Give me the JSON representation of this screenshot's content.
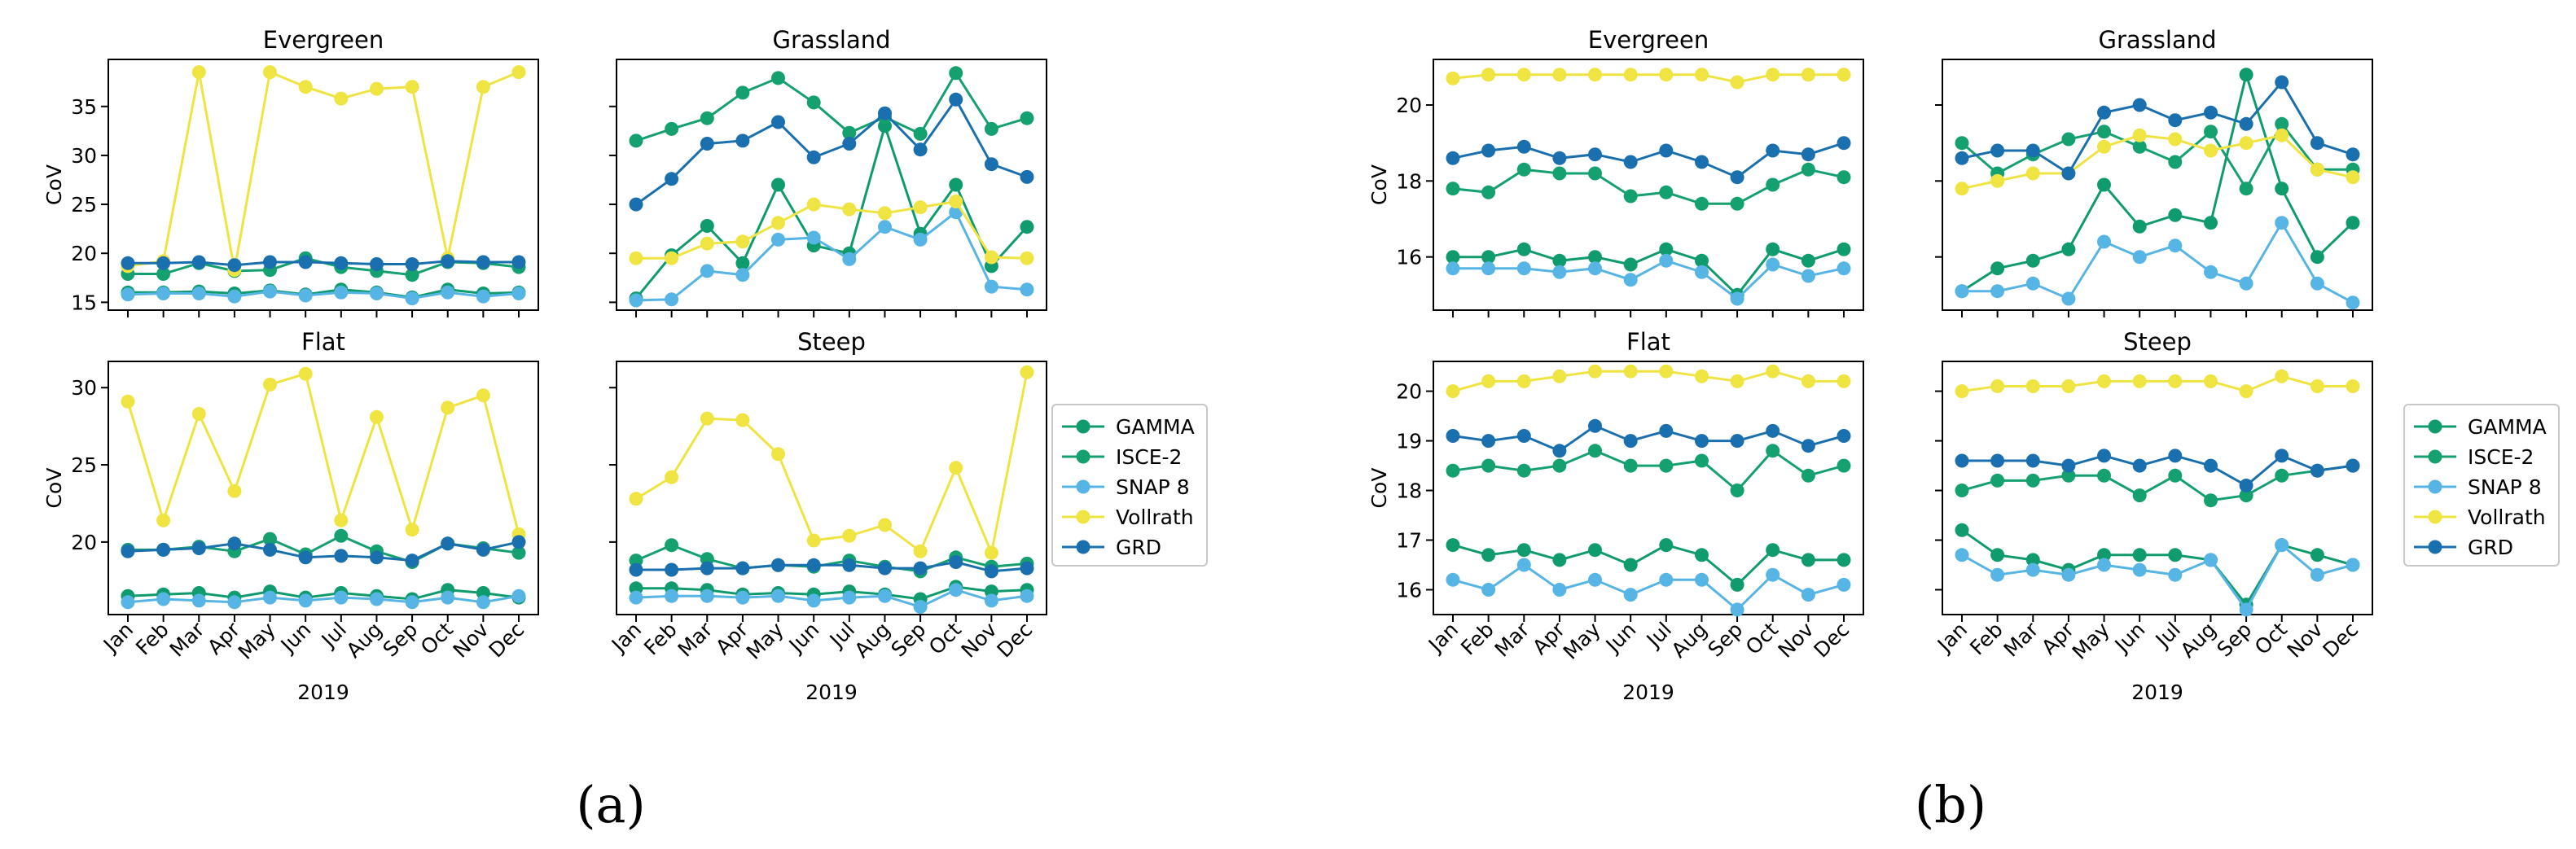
{
  "colors": {
    "GAMMA": "#0f9b6d",
    "ISCE-2": "#15a16f",
    "SNAP 8": "#57b5e6",
    "Vollrath": "#f0e442",
    "GRD": "#1a70ae"
  },
  "months": [
    "Jan",
    "Feb",
    "Mar",
    "Apr",
    "May",
    "Jun",
    "Jul",
    "Aug",
    "Sep",
    "Oct",
    "Nov",
    "Dec"
  ],
  "legend": [
    "GAMMA",
    "ISCE-2",
    "SNAP 8",
    "Vollrath",
    "GRD"
  ],
  "panel_labels": [
    "(a)",
    "(b)"
  ],
  "chart_data": [
    {
      "type": "line",
      "title": "Evergreen",
      "ylabel": "CoV",
      "xlabel": "",
      "ylim": [
        14.2,
        39.8
      ],
      "yticks": [
        15,
        20,
        25,
        30,
        35
      ],
      "series": [
        {
          "name": "GAMMA",
          "values": [
            16.0,
            16.0,
            16.1,
            15.9,
            16.2,
            15.8,
            16.3,
            16.0,
            15.5,
            16.3,
            15.9,
            16.0
          ]
        },
        {
          "name": "ISCE-2",
          "values": [
            17.9,
            17.9,
            19.0,
            18.2,
            18.3,
            19.5,
            18.6,
            18.2,
            17.8,
            19.1,
            19.0,
            18.6
          ]
        },
        {
          "name": "SNAP 8",
          "values": [
            15.8,
            15.9,
            15.9,
            15.6,
            16.1,
            15.7,
            16.0,
            15.9,
            15.4,
            16.0,
            15.6,
            15.9
          ]
        },
        {
          "name": "Vollrath",
          "values": [
            18.7,
            19.2,
            38.5,
            18.3,
            38.5,
            37.0,
            35.8,
            36.8,
            37.0,
            19.5,
            37.0,
            38.5
          ]
        },
        {
          "name": "GRD",
          "values": [
            19.0,
            19.0,
            19.1,
            18.8,
            19.1,
            19.1,
            19.0,
            18.9,
            18.9,
            19.2,
            19.1,
            19.1
          ]
        }
      ]
    },
    {
      "type": "line",
      "title": "Grassland",
      "ylabel": "",
      "xlabel": "",
      "ylim": [
        14.2,
        39.8
      ],
      "yticks": [
        15,
        20,
        25,
        30,
        35
      ],
      "series": [
        {
          "name": "GAMMA",
          "values": [
            15.4,
            19.8,
            22.8,
            19.0,
            27.0,
            20.8,
            20.0,
            33.0,
            22.0,
            27.0,
            18.7,
            22.7
          ]
        },
        {
          "name": "ISCE-2",
          "values": [
            31.5,
            32.7,
            33.8,
            36.4,
            37.9,
            35.4,
            32.3,
            33.9,
            32.2,
            38.4,
            32.7,
            33.8
          ]
        },
        {
          "name": "SNAP 8",
          "values": [
            15.2,
            15.3,
            18.2,
            17.8,
            21.4,
            21.6,
            19.4,
            22.7,
            21.4,
            24.2,
            16.6,
            16.3
          ]
        },
        {
          "name": "Vollrath",
          "values": [
            19.5,
            19.5,
            21.0,
            21.2,
            23.1,
            25.0,
            24.5,
            24.1,
            24.7,
            25.3,
            19.6,
            19.5
          ]
        },
        {
          "name": "GRD",
          "values": [
            25.0,
            27.6,
            31.2,
            31.5,
            33.4,
            29.8,
            31.2,
            34.3,
            30.6,
            35.7,
            29.1,
            27.8
          ]
        }
      ]
    },
    {
      "type": "line",
      "title": "Flat",
      "ylabel": "CoV",
      "xlabel": "2019",
      "ylim": [
        15.3,
        31.7
      ],
      "yticks": [
        20,
        25,
        30
      ],
      "series": [
        {
          "name": "GAMMA",
          "values": [
            16.5,
            16.6,
            16.7,
            16.4,
            16.8,
            16.4,
            16.7,
            16.5,
            16.3,
            16.9,
            16.7,
            16.4
          ]
        },
        {
          "name": "ISCE-2",
          "values": [
            19.5,
            19.5,
            19.7,
            19.4,
            20.2,
            19.2,
            20.4,
            19.4,
            18.7,
            19.9,
            19.6,
            19.3
          ]
        },
        {
          "name": "SNAP 8",
          "values": [
            16.1,
            16.3,
            16.2,
            16.1,
            16.4,
            16.2,
            16.4,
            16.3,
            16.1,
            16.4,
            16.1,
            16.5
          ]
        },
        {
          "name": "Vollrath",
          "values": [
            29.1,
            21.4,
            28.3,
            23.3,
            30.2,
            30.9,
            21.4,
            28.1,
            20.8,
            28.7,
            29.5,
            20.5
          ]
        },
        {
          "name": "GRD",
          "values": [
            19.4,
            19.5,
            19.6,
            19.9,
            19.5,
            19.0,
            19.1,
            19.0,
            18.8,
            19.9,
            19.5,
            20.0
          ]
        }
      ]
    },
    {
      "type": "line",
      "title": "Steep",
      "ylabel": "",
      "xlabel": "2019",
      "ylim": [
        15.3,
        31.7
      ],
      "yticks": [
        20,
        25,
        30
      ],
      "series": [
        {
          "name": "GAMMA",
          "values": [
            17.0,
            17.0,
            16.9,
            16.6,
            16.7,
            16.6,
            16.8,
            16.6,
            16.3,
            17.1,
            16.8,
            16.9
          ]
        },
        {
          "name": "ISCE-2",
          "values": [
            18.8,
            19.8,
            18.9,
            18.3,
            18.5,
            18.4,
            18.8,
            18.4,
            18.1,
            19.0,
            18.4,
            18.6
          ]
        },
        {
          "name": "SNAP 8",
          "values": [
            16.4,
            16.5,
            16.5,
            16.4,
            16.5,
            16.2,
            16.4,
            16.5,
            15.8,
            16.9,
            16.2,
            16.5
          ]
        },
        {
          "name": "Vollrath",
          "values": [
            22.8,
            24.2,
            28.0,
            27.9,
            25.7,
            20.1,
            20.4,
            21.1,
            19.4,
            24.8,
            19.3,
            31.0
          ]
        },
        {
          "name": "GRD",
          "values": [
            18.2,
            18.2,
            18.3,
            18.3,
            18.5,
            18.5,
            18.5,
            18.3,
            18.3,
            18.7,
            18.1,
            18.3
          ]
        }
      ]
    },
    {
      "type": "line",
      "title": "Evergreen",
      "ylabel": "CoV",
      "xlabel": "",
      "ylim": [
        14.6,
        21.2
      ],
      "yticks": [
        16,
        18,
        20
      ],
      "series": [
        {
          "name": "GAMMA",
          "values": [
            16.0,
            16.0,
            16.2,
            15.9,
            16.0,
            15.8,
            16.2,
            15.9,
            15.0,
            16.2,
            15.9,
            16.2
          ]
        },
        {
          "name": "ISCE-2",
          "values": [
            17.8,
            17.7,
            18.3,
            18.2,
            18.2,
            17.6,
            17.7,
            17.4,
            17.4,
            17.9,
            18.3,
            18.1
          ]
        },
        {
          "name": "SNAP 8",
          "values": [
            15.7,
            15.7,
            15.7,
            15.6,
            15.7,
            15.4,
            15.9,
            15.6,
            14.9,
            15.8,
            15.5,
            15.7
          ]
        },
        {
          "name": "Vollrath",
          "values": [
            20.7,
            20.8,
            20.8,
            20.8,
            20.8,
            20.8,
            20.8,
            20.8,
            20.6,
            20.8,
            20.8,
            20.8
          ]
        },
        {
          "name": "GRD",
          "values": [
            18.6,
            18.8,
            18.9,
            18.6,
            18.7,
            18.5,
            18.8,
            18.5,
            18.1,
            18.8,
            18.7,
            19.0
          ]
        }
      ]
    },
    {
      "type": "line",
      "title": "Grassland",
      "ylabel": "",
      "xlabel": "",
      "ylim": [
        14.6,
        21.2
      ],
      "yticks": [
        16,
        18,
        20
      ],
      "series": [
        {
          "name": "GAMMA",
          "values": [
            15.1,
            15.7,
            15.9,
            16.2,
            17.9,
            16.8,
            17.1,
            16.9,
            20.8,
            17.8,
            16.0,
            16.9
          ]
        },
        {
          "name": "ISCE-2",
          "values": [
            19.0,
            18.2,
            18.7,
            19.1,
            19.3,
            18.9,
            18.5,
            19.3,
            17.8,
            19.5,
            18.3,
            18.3
          ]
        },
        {
          "name": "SNAP 8",
          "values": [
            15.1,
            15.1,
            15.3,
            14.9,
            16.4,
            16.0,
            16.3,
            15.6,
            15.3,
            16.9,
            15.3,
            14.8
          ]
        },
        {
          "name": "Vollrath",
          "values": [
            17.8,
            18.0,
            18.2,
            18.2,
            18.9,
            19.2,
            19.1,
            18.8,
            19.0,
            19.2,
            18.3,
            18.1
          ]
        },
        {
          "name": "GRD",
          "values": [
            18.6,
            18.8,
            18.8,
            18.2,
            19.8,
            20.0,
            19.6,
            19.8,
            19.5,
            20.6,
            19.0,
            18.7
          ]
        }
      ]
    },
    {
      "type": "line",
      "title": "Flat",
      "ylabel": "CoV",
      "xlabel": "2019",
      "ylim": [
        15.5,
        20.6
      ],
      "yticks": [
        16,
        17,
        18,
        19,
        20
      ],
      "series": [
        {
          "name": "GAMMA",
          "values": [
            16.9,
            16.7,
            16.8,
            16.6,
            16.8,
            16.5,
            16.9,
            16.7,
            16.1,
            16.8,
            16.6,
            16.6
          ]
        },
        {
          "name": "ISCE-2",
          "values": [
            18.4,
            18.5,
            18.4,
            18.5,
            18.8,
            18.5,
            18.5,
            18.6,
            18.0,
            18.8,
            18.3,
            18.5
          ]
        },
        {
          "name": "SNAP 8",
          "values": [
            16.2,
            16.0,
            16.5,
            16.0,
            16.2,
            15.9,
            16.2,
            16.2,
            15.6,
            16.3,
            15.9,
            16.1
          ]
        },
        {
          "name": "Vollrath",
          "values": [
            20.0,
            20.2,
            20.2,
            20.3,
            20.4,
            20.4,
            20.4,
            20.3,
            20.2,
            20.4,
            20.2,
            20.2
          ]
        },
        {
          "name": "GRD",
          "values": [
            19.1,
            19.0,
            19.1,
            18.8,
            19.3,
            19.0,
            19.2,
            19.0,
            19.0,
            19.2,
            18.9,
            19.1
          ]
        }
      ]
    },
    {
      "type": "line",
      "title": "Steep",
      "ylabel": "",
      "xlabel": "2019",
      "ylim": [
        15.5,
        20.6
      ],
      "yticks": [
        16,
        17,
        18,
        19,
        20
      ],
      "series": [
        {
          "name": "GAMMA",
          "values": [
            17.2,
            16.7,
            16.6,
            16.4,
            16.7,
            16.7,
            16.7,
            16.6,
            15.7,
            16.9,
            16.7,
            16.5
          ]
        },
        {
          "name": "ISCE-2",
          "values": [
            18.0,
            18.2,
            18.2,
            18.3,
            18.3,
            17.9,
            18.3,
            17.8,
            17.9,
            18.3,
            18.4,
            18.5
          ]
        },
        {
          "name": "SNAP 8",
          "values": [
            16.7,
            16.3,
            16.4,
            16.3,
            16.5,
            16.4,
            16.3,
            16.6,
            15.6,
            16.9,
            16.3,
            16.5
          ]
        },
        {
          "name": "Vollrath",
          "values": [
            20.0,
            20.1,
            20.1,
            20.1,
            20.2,
            20.2,
            20.2,
            20.2,
            20.0,
            20.3,
            20.1,
            20.1
          ]
        },
        {
          "name": "GRD",
          "values": [
            18.6,
            18.6,
            18.6,
            18.5,
            18.7,
            18.5,
            18.7,
            18.5,
            18.1,
            18.7,
            18.4,
            18.5
          ]
        }
      ]
    }
  ]
}
